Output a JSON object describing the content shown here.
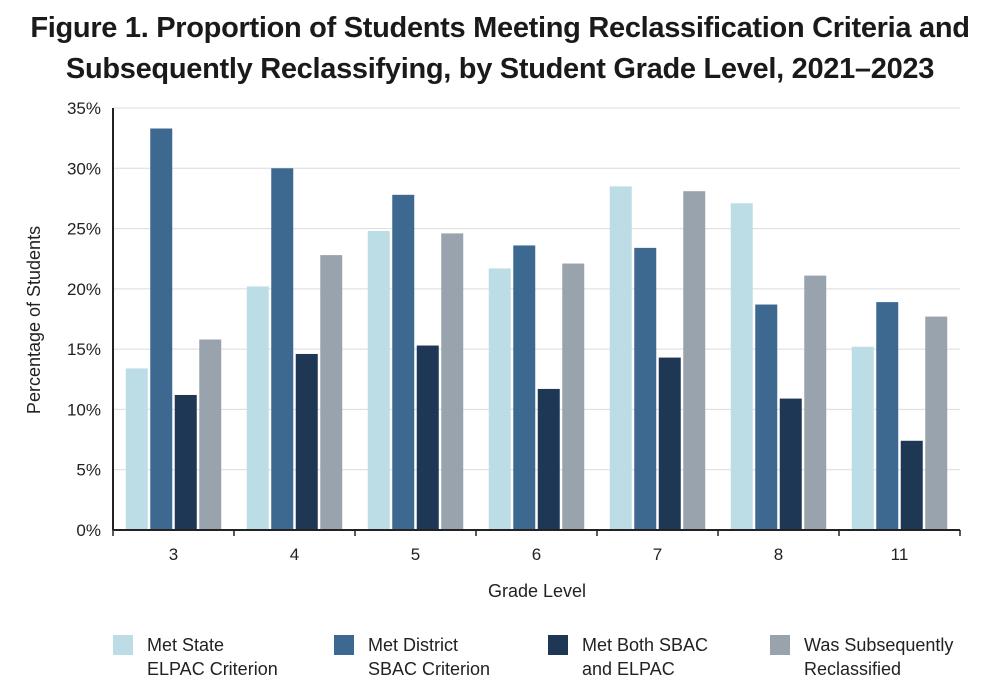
{
  "title_line1": "Figure 1. Proportion of Students Meeting Reclassification Criteria and",
  "title_line2": "Subsequently Reclassifying, by Student Grade Level, 2021–2023",
  "chart_data": {
    "type": "bar",
    "title": "Figure 1. Proportion of Students Meeting Reclassification Criteria and Subsequently Reclassifying, by Student Grade Level, 2021–2023",
    "xlabel": "Grade Level",
    "ylabel": "Percentage of Students",
    "ylim": [
      0,
      35
    ],
    "yticks": [
      "0%",
      "5%",
      "10%",
      "15%",
      "20%",
      "25%",
      "30%",
      "35%"
    ],
    "grid": true,
    "legend_position": "bottom",
    "categories": [
      "3",
      "4",
      "5",
      "6",
      "7",
      "8",
      "11"
    ],
    "series": [
      {
        "name_line1": "Met State",
        "name_line2": "ELPAC Criterion",
        "color": "#bcdde6",
        "values": [
          13.4,
          20.2,
          24.8,
          21.7,
          28.5,
          27.1,
          15.2
        ]
      },
      {
        "name_line1": "Met District",
        "name_line2": "SBAC Criterion",
        "color": "#3d6890",
        "values": [
          33.3,
          30.0,
          27.8,
          23.6,
          23.4,
          18.7,
          18.9
        ]
      },
      {
        "name_line1": "Met Both SBAC",
        "name_line2": "and ELPAC",
        "color": "#1d3754",
        "values": [
          11.2,
          14.6,
          15.3,
          11.7,
          14.3,
          10.9,
          7.4
        ]
      },
      {
        "name_line1": "Was Subsequently",
        "name_line2": "Reclassified",
        "color": "#99a3ad",
        "values": [
          15.8,
          22.8,
          24.6,
          22.1,
          28.1,
          21.1,
          17.7
        ]
      }
    ]
  }
}
